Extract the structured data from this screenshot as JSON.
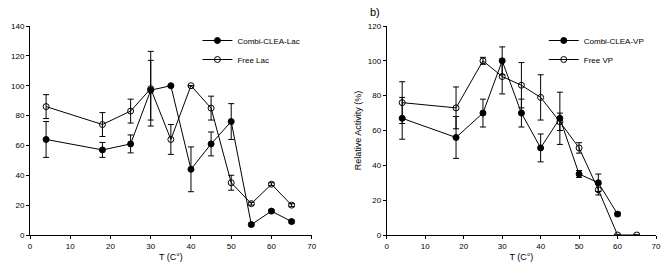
{
  "chart_data": [
    {
      "type": "line",
      "x_label": "T (C°)",
      "x": [
        4,
        18,
        25,
        30,
        35,
        40,
        45,
        50,
        55,
        60,
        65
      ],
      "series": [
        {
          "name": "Combi-CLEA-Lac",
          "color": "#000000",
          "marker": "filled",
          "line_style": "solid",
          "values": [
            64,
            57,
            61,
            97,
            100,
            44,
            61,
            76,
            7,
            16,
            9
          ],
          "errors": [
            12,
            5,
            6,
            20,
            0,
            15,
            8,
            12,
            1,
            1,
            1
          ]
        },
        {
          "name": "Free Lac",
          "color": "#000000",
          "marker": "open",
          "line_style": "solid",
          "values": [
            86,
            74,
            83,
            98,
            64,
            100,
            85,
            35,
            21,
            34,
            20
          ],
          "errors": [
            8,
            8,
            8,
            25,
            10,
            0,
            8,
            5,
            1,
            1,
            1
          ]
        }
      ],
      "xlim": [
        0,
        70
      ],
      "xticks": [
        0,
        10,
        20,
        30,
        40,
        50,
        60,
        70
      ],
      "ylim": [
        0,
        140
      ],
      "yticks": [
        0,
        20,
        40,
        60,
        80,
        100,
        120,
        140
      ],
      "grid": false,
      "legend": "upper right"
    },
    {
      "type": "line",
      "title": "b)",
      "x_label": "T (C°)",
      "y_label": "Relative Activity (%)",
      "x": [
        4,
        18,
        25,
        30,
        35,
        40,
        45,
        50,
        55,
        60,
        65
      ],
      "series": [
        {
          "name": "Combi-CLEA-VP",
          "color": "#000000",
          "marker": "filled",
          "line_style": "solid",
          "values": [
            67,
            56,
            70,
            100,
            70,
            50,
            67,
            35,
            30,
            12,
            null
          ],
          "errors": [
            12,
            12,
            8,
            8,
            8,
            8,
            15,
            2,
            5,
            1,
            null
          ]
        },
        {
          "name": "Free VP",
          "color": "#000000",
          "marker": "open",
          "line_style": "solid",
          "values": [
            76,
            73,
            100,
            91,
            86,
            79,
            65,
            50,
            26,
            0,
            0
          ],
          "errors": [
            12,
            12,
            2,
            10,
            13,
            13,
            5,
            3,
            3,
            0,
            0
          ]
        }
      ],
      "xlim": [
        0,
        70
      ],
      "xticks": [
        0,
        10,
        20,
        30,
        40,
        50,
        60,
        70
      ],
      "ylim": [
        0,
        120
      ],
      "yticks": [
        0,
        20,
        40,
        60,
        80,
        100,
        120
      ],
      "grid": false,
      "legend": "upper right"
    }
  ]
}
